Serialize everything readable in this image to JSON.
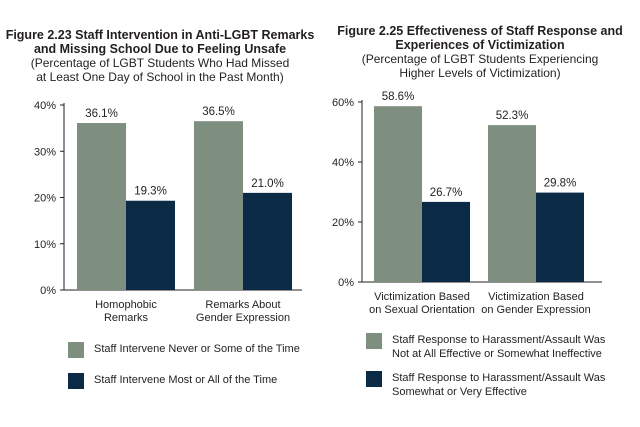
{
  "colors": {
    "series1": "#7e8f80",
    "series2": "#0b2a45"
  },
  "chart_data": [
    {
      "type": "bar",
      "title": "Figure 2.23 Staff Intervention in Anti-LGBT Remarks and Missing School Due to Feeling Unsafe",
      "title_lines": [
        "Figure 2.23 Staff Intervention in Anti-LGBT Remarks",
        "and Missing School Due to Feeling Unsafe"
      ],
      "subtitle": "(Percentage of LGBT Students Who Had Missed at Least One Day of School in the Past Month)",
      "subtitle_lines": [
        "(Percentage of LGBT Students Who Had Missed",
        "at Least One Day of School in the Past Month)"
      ],
      "categories": [
        "Homophobic Remarks",
        "Remarks About Gender Expression"
      ],
      "category_lines": [
        [
          "Homophobic",
          "Remarks"
        ],
        [
          "Remarks About",
          "Gender Expression"
        ]
      ],
      "yticks": [
        "0%",
        "10%",
        "20%",
        "30%",
        "40%"
      ],
      "ylim": [
        0,
        40
      ],
      "series": [
        {
          "name": "Staff Intervene Never or Some of the Time",
          "values": [
            36.1,
            36.5
          ],
          "labels": [
            "36.1%",
            "36.5%"
          ]
        },
        {
          "name": "Staff Intervene Most or All of the Time",
          "values": [
            19.3,
            21.0
          ],
          "labels": [
            "19.3%",
            "21.0%"
          ]
        }
      ],
      "legend_lines": [
        [
          "Staff Intervene Never or Some of the Time"
        ],
        [
          "Staff Intervene Most or All of the Time"
        ]
      ],
      "grid": false,
      "legend_position": "bottom"
    },
    {
      "type": "bar",
      "title": "Figure 2.25 Effectiveness of Staff Response and Experiences of Victimization",
      "title_lines": [
        "Figure 2.25 Effectiveness of Staff Response and",
        "Experiences of Victimization"
      ],
      "subtitle": "(Percentage of LGBT Students Experiencing Higher Levels of Victimization)",
      "subtitle_lines": [
        "(Percentage of LGBT Students Experiencing",
        "Higher Levels of Victimization)"
      ],
      "categories": [
        "Victimization Based on Sexual Orientation",
        "Victimization Based on Gender Expression"
      ],
      "category_lines": [
        [
          "Victimization Based",
          "on Sexual Orientation"
        ],
        [
          "Victimization Based",
          "on Gender Expression"
        ]
      ],
      "yticks": [
        "0%",
        "20%",
        "40%",
        "60%"
      ],
      "ylim": [
        0,
        60
      ],
      "series": [
        {
          "name": "Staff Response to Harassment/Assault Was Not at All Effective or Somewhat Ineffective",
          "values": [
            58.6,
            52.3
          ],
          "labels": [
            "58.6%",
            "52.3%"
          ]
        },
        {
          "name": "Staff Response to Harassment/Assault Was Somewhat or Very Effective",
          "values": [
            26.7,
            29.8
          ],
          "labels": [
            "26.7%",
            "29.8%"
          ]
        }
      ],
      "legend_lines": [
        [
          "Staff Response to Harassment/Assault Was",
          "Not at All Effective or Somewhat Ineffective"
        ],
        [
          "Staff Response to Harassment/Assault Was",
          "Somewhat or Very Effective"
        ]
      ],
      "grid": false,
      "legend_position": "bottom"
    }
  ]
}
